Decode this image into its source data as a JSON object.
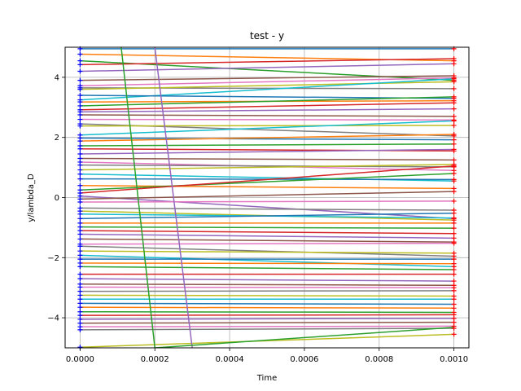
{
  "chart_data": {
    "type": "line",
    "title": "test - y",
    "xlabel": "Time",
    "ylabel": "y/lambda_D",
    "xlim": [
      -4e-05,
      0.00104
    ],
    "ylim": [
      -5,
      5
    ],
    "grid": true,
    "legend": "none",
    "x_ticks": [
      0,
      0.0002,
      0.0004,
      0.0006,
      0.0008,
      0.001
    ],
    "x_tick_labels": [
      "0.0000",
      "0.0002",
      "0.0004",
      "0.0006",
      "0.0008",
      "0.0010"
    ],
    "y_ticks": [
      -4,
      -2,
      0,
      2,
      4
    ],
    "y_tick_labels": [
      "−4",
      "−2",
      "0",
      "2",
      "4"
    ],
    "x": [
      0,
      0.001
    ],
    "start_marker_color": "#0000ff",
    "end_marker_color": "#ff0000",
    "palette": [
      "#1f77b4",
      "#ff7f0e",
      "#2ca02c",
      "#d62728",
      "#9467bd",
      "#8c564b",
      "#e377c2",
      "#7f7f7f",
      "#bcbd22",
      "#17becf"
    ],
    "series": [
      {
        "values": [
          4.95,
          4.95
        ]
      },
      {
        "values": [
          4.77,
          4.55
        ]
      },
      {
        "values": [
          4.55,
          3.9
        ]
      },
      {
        "values": [
          4.42,
          4.62
        ]
      },
      {
        "values": [
          4.2,
          4.45
        ]
      },
      {
        "values": [
          3.9,
          4.05
        ]
      },
      {
        "values": [
          3.72,
          3.98
        ]
      },
      {
        "values": [
          3.65,
          3.62
        ]
      },
      {
        "values": [
          3.6,
          3.85
        ]
      },
      {
        "values": [
          3.25,
          3.95
        ]
      },
      {
        "values": [
          3.4,
          3.3
        ]
      },
      {
        "values": [
          3.18,
          3.22
        ]
      },
      {
        "values": [
          3.05,
          3.35
        ]
      },
      {
        "values": [
          2.92,
          3.15
        ]
      },
      {
        "values": [
          2.85,
          2.95
        ]
      },
      {
        "values": [
          2.75,
          2.7
        ]
      },
      {
        "values": [
          2.6,
          2.58
        ]
      },
      {
        "values": [
          2.45,
          2.05
        ]
      },
      {
        "values": [
          2.38,
          2.4
        ]
      },
      {
        "values": [
          2.08,
          2.55
        ]
      },
      {
        "values": [
          1.98,
          1.92
        ]
      },
      {
        "values": [
          1.88,
          2.1
        ]
      },
      {
        "values": [
          1.72,
          1.78
        ]
      },
      {
        "values": [
          1.62,
          1.55
        ]
      },
      {
        "values": [
          1.45,
          1.6
        ]
      },
      {
        "values": [
          1.3,
          1.25
        ]
      },
      {
        "values": [
          1.18,
          0.9
        ]
      },
      {
        "values": [
          1.08,
          1.02
        ]
      },
      {
        "values": [
          0.92,
          1.1
        ]
      },
      {
        "values": [
          0.78,
          0.55
        ]
      },
      {
        "values": [
          0.62,
          0.6
        ]
      },
      {
        "values": [
          0.4,
          0.3
        ]
      },
      {
        "values": [
          0.25,
          0.8
        ]
      },
      {
        "values": [
          0.15,
          1.05
        ]
      },
      {
        "values": [
          0.05,
          -0.7
        ]
      },
      {
        "values": [
          -0.05,
          0.2
        ]
      },
      {
        "values": [
          -0.15,
          -0.12
        ]
      },
      {
        "values": [
          -0.35,
          -0.42
        ]
      },
      {
        "values": [
          -0.45,
          -0.75
        ]
      },
      {
        "values": [
          -0.55,
          -0.68
        ]
      },
      {
        "values": [
          -0.7,
          -0.52
        ]
      },
      {
        "values": [
          -0.85,
          -0.85
        ]
      },
      {
        "values": [
          -0.98,
          -1.02
        ]
      },
      {
        "values": [
          -1.1,
          -1.2
        ]
      },
      {
        "values": [
          -1.22,
          -1.35
        ]
      },
      {
        "values": [
          -1.38,
          -1.48
        ]
      },
      {
        "values": [
          -1.55,
          -1.52
        ]
      },
      {
        "values": [
          -1.62,
          -1.95
        ]
      },
      {
        "values": [
          -1.78,
          -1.85
        ]
      },
      {
        "values": [
          -1.92,
          -2.3
        ]
      },
      {
        "values": [
          -2.05,
          -2.05
        ]
      },
      {
        "values": [
          -2.18,
          -2.2
        ]
      },
      {
        "values": [
          -2.3,
          -2.4
        ]
      },
      {
        "values": [
          -2.55,
          -2.55
        ]
      },
      {
        "values": [
          -2.7,
          -2.78
        ]
      },
      {
        "values": [
          -2.88,
          -2.92
        ]
      },
      {
        "values": [
          -2.98,
          -3.0
        ]
      },
      {
        "values": [
          -3.12,
          -3.1
        ]
      },
      {
        "values": [
          -3.25,
          -3.28
        ]
      },
      {
        "values": [
          -3.38,
          -3.38
        ]
      },
      {
        "values": [
          -3.52,
          -3.55
        ]
      },
      {
        "values": [
          -3.65,
          -3.68
        ]
      },
      {
        "values": [
          -3.8,
          -3.82
        ]
      },
      {
        "values": [
          -3.92,
          -3.9
        ]
      },
      {
        "values": [
          -4.05,
          -4.02
        ]
      },
      {
        "values": [
          -4.18,
          -4.15
        ]
      },
      {
        "values": [
          -4.3,
          -4.28
        ]
      },
      {
        "values": [
          -4.4,
          -4.35
        ]
      },
      {
        "values": [
          -4.98,
          -4.55
        ]
      }
    ],
    "drift_lines": [
      {
        "x": [
          0.00011,
          0.0002
        ],
        "values": [
          5.0,
          -5.0
        ],
        "color": "#2ca02c"
      },
      {
        "x": [
          0.0002,
          0.0003
        ],
        "values": [
          5.0,
          -5.0
        ],
        "color": "#9467bd"
      },
      {
        "x": [
          0.0002,
          0.001
        ],
        "values": [
          -5.0,
          -4.32
        ],
        "color": "#2ca02c"
      }
    ]
  }
}
